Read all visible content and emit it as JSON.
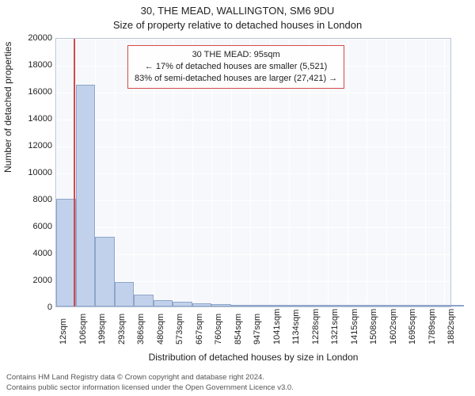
{
  "chart": {
    "type": "histogram",
    "title_main": "30, THE MEAD, WALLINGTON, SM6 9DU",
    "title_sub": "Size of property relative to detached houses in London",
    "title_fontsize": 13,
    "background_color": "#ffffff",
    "plot_background": "#f6f8fb",
    "plot_border_color": "#b8c5d6",
    "grid_color": "#ffffff",
    "bar_fill": "#c2d1eb",
    "bar_border": "#8ea5c9",
    "reference_line_color": "#d44a4a",
    "reference_value_sqm": 95,
    "x_min": 12,
    "x_max": 1920,
    "xticks": [
      12,
      106,
      199,
      293,
      386,
      480,
      573,
      667,
      760,
      854,
      947,
      1041,
      1134,
      1228,
      1321,
      1415,
      1508,
      1602,
      1695,
      1789,
      1882
    ],
    "xtick_suffix": "sqm",
    "bin_width_sqm": 93.5,
    "yaxis": {
      "label": "Number of detached properties",
      "min": 0,
      "max": 20000,
      "tick_step": 2000,
      "ticks": [
        0,
        2000,
        4000,
        6000,
        8000,
        10000,
        12000,
        14000,
        16000,
        18000,
        20000
      ],
      "label_fontsize": 12,
      "tick_fontsize": 11
    },
    "xaxis": {
      "label": "Distribution of detached houses by size in London",
      "label_fontsize": 12,
      "tick_fontsize": 11
    },
    "bars": [
      {
        "x0": 12,
        "count": 8000
      },
      {
        "x0": 106,
        "count": 16500
      },
      {
        "x0": 199,
        "count": 5200
      },
      {
        "x0": 293,
        "count": 1800
      },
      {
        "x0": 386,
        "count": 900
      },
      {
        "x0": 480,
        "count": 500
      },
      {
        "x0": 573,
        "count": 350
      },
      {
        "x0": 667,
        "count": 250
      },
      {
        "x0": 760,
        "count": 180
      },
      {
        "x0": 854,
        "count": 130
      },
      {
        "x0": 947,
        "count": 90
      },
      {
        "x0": 1041,
        "count": 60
      },
      {
        "x0": 1134,
        "count": 45
      },
      {
        "x0": 1228,
        "count": 35
      },
      {
        "x0": 1321,
        "count": 25
      },
      {
        "x0": 1415,
        "count": 20
      },
      {
        "x0": 1508,
        "count": 15
      },
      {
        "x0": 1602,
        "count": 12
      },
      {
        "x0": 1695,
        "count": 10
      },
      {
        "x0": 1789,
        "count": 8
      },
      {
        "x0": 1882,
        "count": 6
      }
    ],
    "annotation": {
      "line1": "30 THE MEAD: 95sqm",
      "line2": "← 17% of detached houses are smaller (5,521)",
      "line3": "83% of semi-detached houses are larger (27,421) →",
      "fontsize": 11,
      "border_color": "#d44a4a"
    },
    "footer": {
      "line1": "Contains HM Land Registry data © Crown copyright and database right 2024.",
      "line2": "Contains public sector information licensed under the Open Government Licence v3.0.",
      "fontsize": 9.5,
      "color": "#555555"
    }
  }
}
